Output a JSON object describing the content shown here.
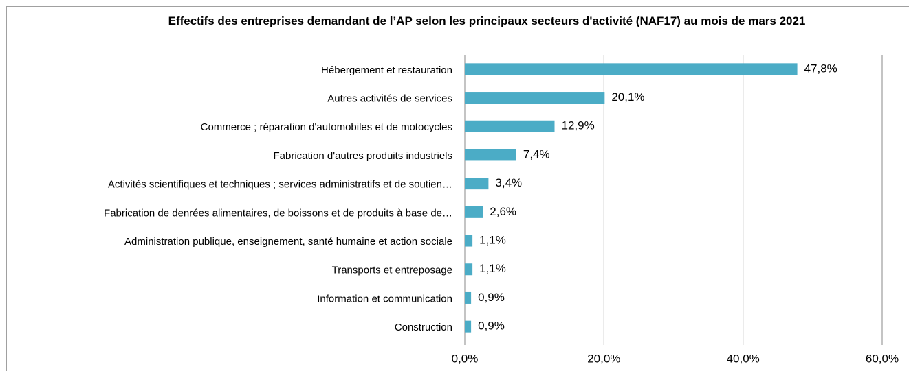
{
  "chart_data": {
    "type": "bar",
    "orientation": "horizontal",
    "title": "Effectifs des entreprises demandant de l’AP selon les principaux secteurs d'activité (NAF17) au mois de mars 2021",
    "categories": [
      "Hébergement et restauration",
      "Autres activités de services",
      "Commerce ; réparation d'automobiles et de motocycles",
      "Fabrication d'autres produits industriels",
      "Activités scientifiques et techniques ; services administratifs et de soutien…",
      "Fabrication de denrées alimentaires, de boissons et  de produits à base de…",
      "Administration publique, enseignement, santé humaine et action sociale",
      "Transports et entreposage",
      "Information et communication",
      "Construction"
    ],
    "values": [
      47.8,
      20.1,
      12.9,
      7.4,
      3.4,
      2.6,
      1.1,
      1.1,
      0.9,
      0.9
    ],
    "value_labels": [
      "47,8%",
      "20,1%",
      "12,9%",
      "7,4%",
      "3,4%",
      "2,6%",
      "1,1%",
      "1,1%",
      "0,9%",
      "0,9%"
    ],
    "color": "#4bacc6",
    "xlim": [
      0,
      60
    ],
    "xticks": [
      {
        "value": 0,
        "label": "0,0%"
      },
      {
        "value": 20,
        "label": "20,0%"
      },
      {
        "value": 40,
        "label": "40,0%"
      },
      {
        "value": 60,
        "label": "60,0%"
      }
    ],
    "grid": true
  }
}
